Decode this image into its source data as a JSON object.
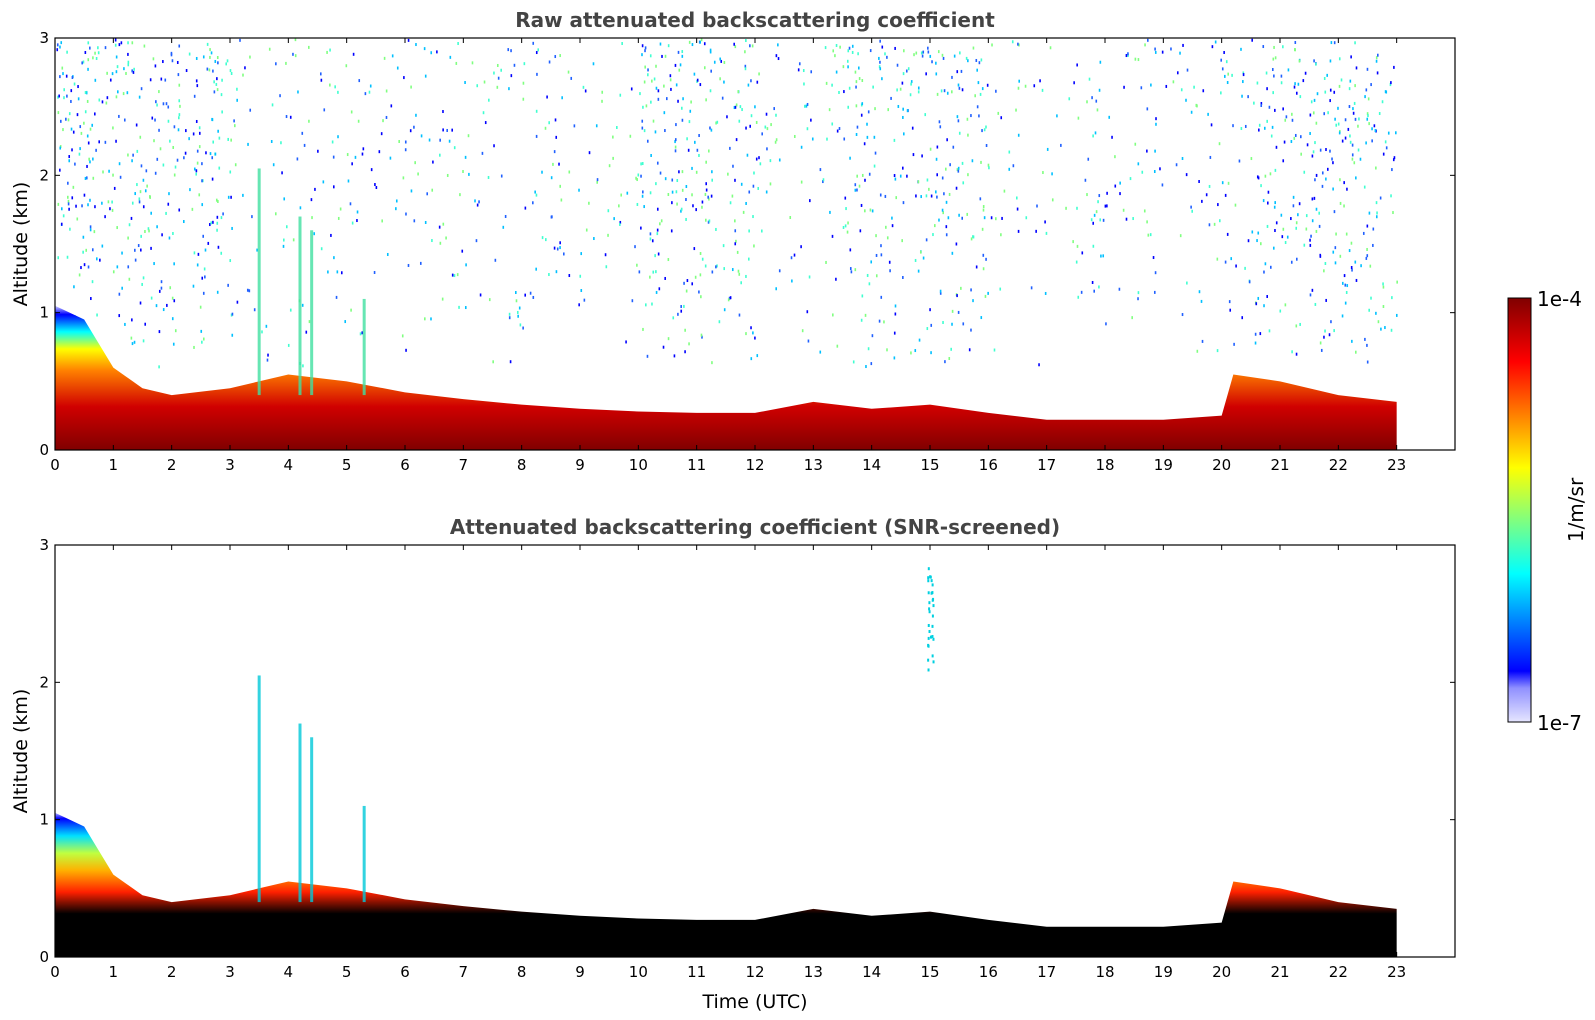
{
  "chart_data": [
    {
      "type": "heatmap",
      "title": "Raw attenuated backscattering coefficient",
      "xlabel": "",
      "ylabel": "Altitude (km)",
      "xlim": [
        0,
        24
      ],
      "ylim": [
        0,
        3
      ],
      "x_ticks": [
        "0",
        "1",
        "2",
        "3",
        "4",
        "5",
        "6",
        "7",
        "8",
        "9",
        "10",
        "11",
        "12",
        "13",
        "14",
        "15",
        "16",
        "17",
        "18",
        "19",
        "20",
        "21",
        "22",
        "23"
      ],
      "y_ticks": [
        "0",
        "1",
        "2",
        "3"
      ],
      "data_x_range": [
        0,
        23
      ],
      "boundary_layer_top_km": [
        {
          "x": 0,
          "y": 1.05
        },
        {
          "x": 0.5,
          "y": 0.95
        },
        {
          "x": 1,
          "y": 0.6
        },
        {
          "x": 1.5,
          "y": 0.45
        },
        {
          "x": 2,
          "y": 0.4
        },
        {
          "x": 3,
          "y": 0.45
        },
        {
          "x": 4,
          "y": 0.55
        },
        {
          "x": 5,
          "y": 0.5
        },
        {
          "x": 6,
          "y": 0.42
        },
        {
          "x": 7,
          "y": 0.37
        },
        {
          "x": 8,
          "y": 0.33
        },
        {
          "x": 9,
          "y": 0.3
        },
        {
          "x": 10,
          "y": 0.28
        },
        {
          "x": 11,
          "y": 0.27
        },
        {
          "x": 12,
          "y": 0.27
        },
        {
          "x": 13,
          "y": 0.35
        },
        {
          "x": 14,
          "y": 0.3
        },
        {
          "x": 15,
          "y": 0.33
        },
        {
          "x": 16,
          "y": 0.27
        },
        {
          "x": 17,
          "y": 0.22
        },
        {
          "x": 18,
          "y": 0.22
        },
        {
          "x": 19,
          "y": 0.22
        },
        {
          "x": 20,
          "y": 0.25
        },
        {
          "x": 20.2,
          "y": 0.55
        },
        {
          "x": 21,
          "y": 0.5
        },
        {
          "x": 22,
          "y": 0.4
        },
        {
          "x": 23,
          "y": 0.35
        }
      ],
      "noise_above_layer": true
    },
    {
      "type": "heatmap",
      "title": "Attenuated backscattering coefficient (SNR-screened)",
      "xlabel": "Time (UTC)",
      "ylabel": "Altitude (km)",
      "xlim": [
        0,
        24
      ],
      "ylim": [
        0,
        3
      ],
      "x_ticks": [
        "0",
        "1",
        "2",
        "3",
        "4",
        "5",
        "6",
        "7",
        "8",
        "9",
        "10",
        "11",
        "12",
        "13",
        "14",
        "15",
        "16",
        "17",
        "18",
        "19",
        "20",
        "21",
        "22",
        "23"
      ],
      "y_ticks": [
        "0",
        "1",
        "2",
        "3"
      ],
      "data_x_range": [
        0,
        23
      ],
      "boundary_layer_top_km": [
        {
          "x": 0,
          "y": 1.05
        },
        {
          "x": 0.5,
          "y": 0.95
        },
        {
          "x": 1,
          "y": 0.6
        },
        {
          "x": 1.5,
          "y": 0.45
        },
        {
          "x": 2,
          "y": 0.4
        },
        {
          "x": 3,
          "y": 0.45
        },
        {
          "x": 4,
          "y": 0.55
        },
        {
          "x": 5,
          "y": 0.5
        },
        {
          "x": 6,
          "y": 0.42
        },
        {
          "x": 7,
          "y": 0.37
        },
        {
          "x": 8,
          "y": 0.33
        },
        {
          "x": 9,
          "y": 0.3
        },
        {
          "x": 10,
          "y": 0.28
        },
        {
          "x": 11,
          "y": 0.27
        },
        {
          "x": 12,
          "y": 0.27
        },
        {
          "x": 13,
          "y": 0.35
        },
        {
          "x": 14,
          "y": 0.3
        },
        {
          "x": 15,
          "y": 0.33
        },
        {
          "x": 16,
          "y": 0.27
        },
        {
          "x": 17,
          "y": 0.22
        },
        {
          "x": 18,
          "y": 0.22
        },
        {
          "x": 19,
          "y": 0.22
        },
        {
          "x": 20,
          "y": 0.25
        },
        {
          "x": 20.2,
          "y": 0.55
        },
        {
          "x": 21,
          "y": 0.5
        },
        {
          "x": 22,
          "y": 0.4
        },
        {
          "x": 23,
          "y": 0.35
        }
      ],
      "noise_above_layer": false,
      "screened_value_color": "#000000"
    }
  ],
  "colorbar": {
    "label": "1/m/sr",
    "max_label": "1e-4",
    "min_label": "1e-7",
    "scale": "log",
    "colormap": "jet",
    "colors": [
      "#e6e6ff",
      "#0000ff",
      "#00ffff",
      "#ffff00",
      "#ff0000",
      "#800000"
    ]
  }
}
